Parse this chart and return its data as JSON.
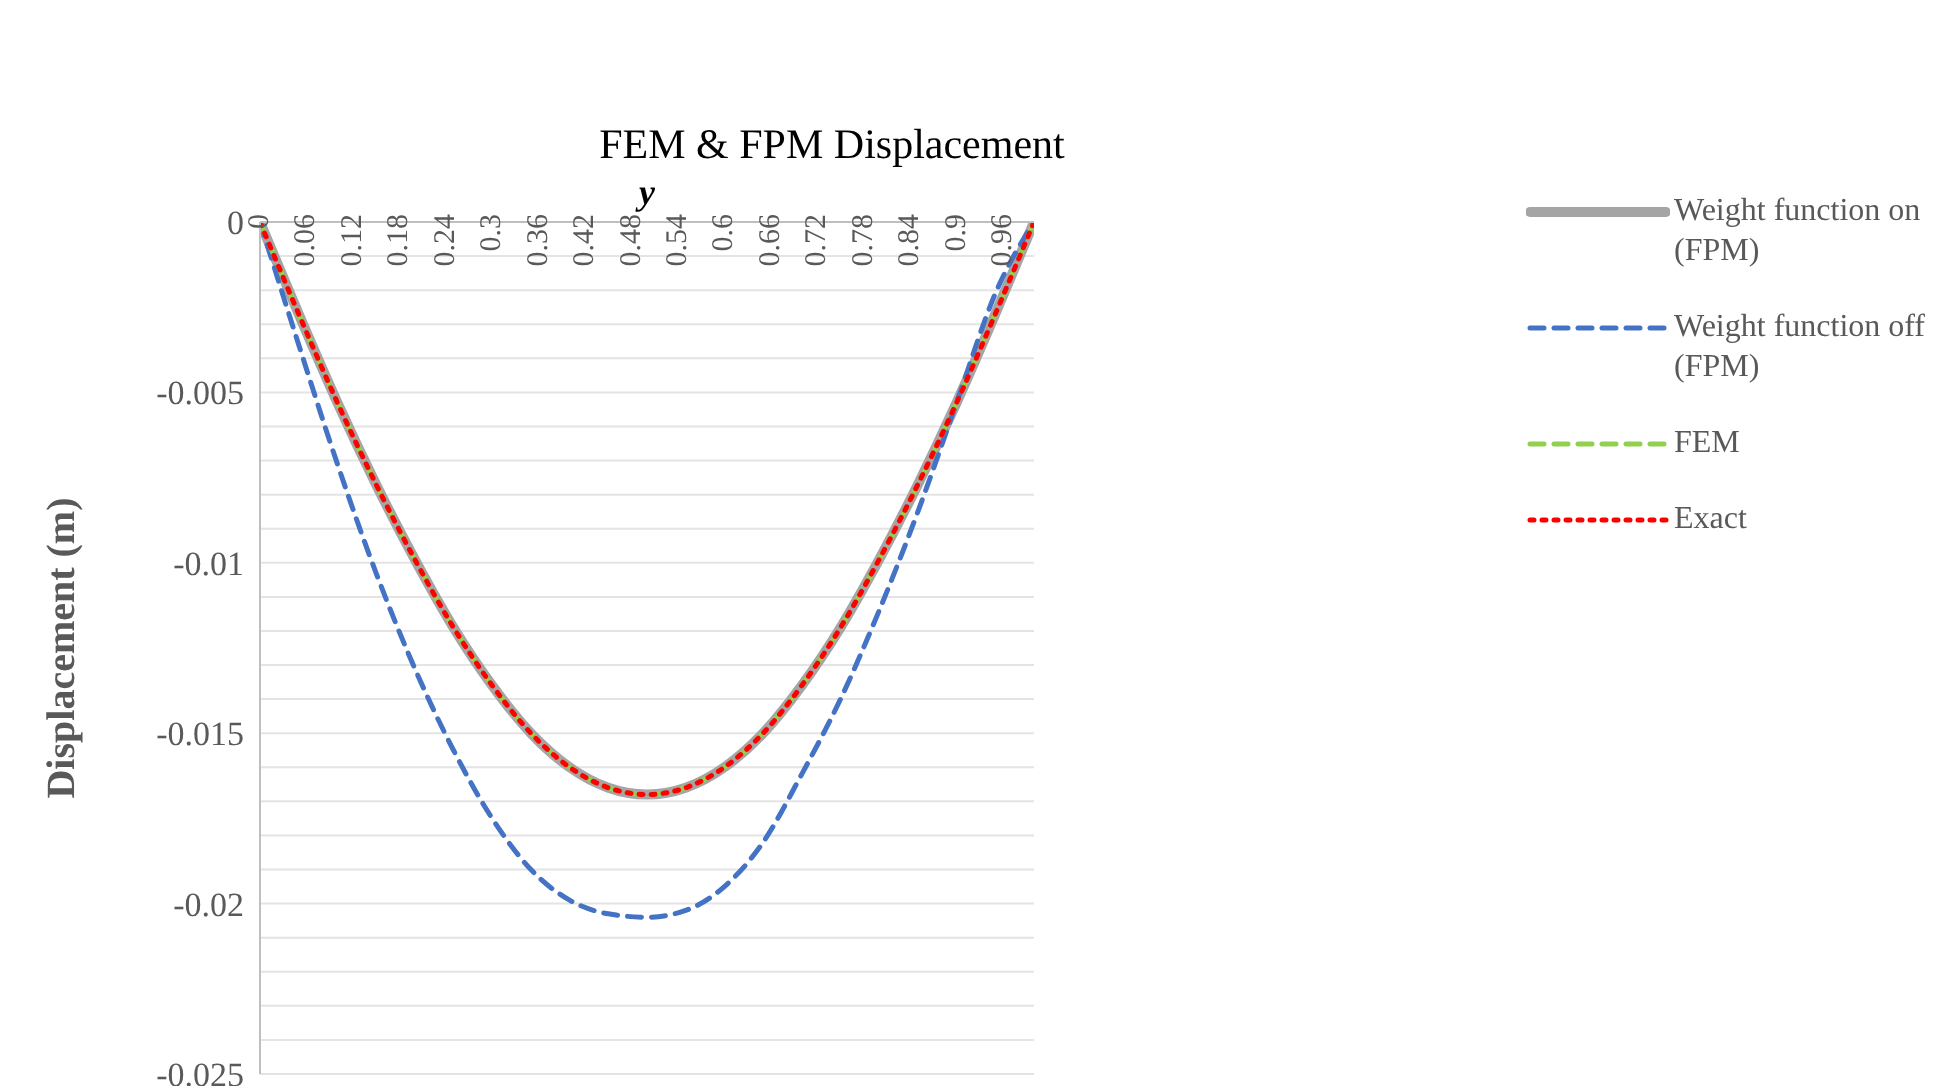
{
  "chart_data": {
    "type": "line",
    "title": "FEM & FPM Displacement",
    "xlabel": "y",
    "ylabel": "Displacement (m)",
    "x": [
      0,
      0.05,
      0.1,
      0.15,
      0.2,
      0.25,
      0.3,
      0.35,
      0.4,
      0.45,
      0.5,
      0.55,
      0.6,
      0.65,
      0.7,
      0.75,
      0.8,
      0.85,
      0.9,
      0.95,
      1
    ],
    "series": [
      {
        "name": "Weight function on (FPM)",
        "color": "#a5a5a5",
        "line_style": "solid",
        "values": [
          0,
          -0.0027,
          -0.0053,
          -0.0077,
          -0.0099,
          -0.0119,
          -0.0136,
          -0.015,
          -0.016,
          -0.0166,
          -0.0168,
          -0.0166,
          -0.016,
          -0.015,
          -0.0136,
          -0.0119,
          -0.0099,
          -0.0077,
          -0.0053,
          -0.0027,
          0
        ]
      },
      {
        "name": "Weight function off (FPM)",
        "color": "#4472c4",
        "line_style": "dashed",
        "values": [
          0,
          -0.0036,
          -0.0071,
          -0.0103,
          -0.0131,
          -0.0155,
          -0.0175,
          -0.019,
          -0.0199,
          -0.0203,
          -0.0204,
          -0.0202,
          -0.0195,
          -0.0182,
          -0.0162,
          -0.014,
          -0.0114,
          -0.0085,
          -0.0053,
          -0.0021,
          0
        ]
      },
      {
        "name": "FEM",
        "color": "#92d050",
        "line_style": "dashed",
        "values": [
          0,
          -0.0027,
          -0.0053,
          -0.0077,
          -0.0099,
          -0.0119,
          -0.0136,
          -0.015,
          -0.016,
          -0.0166,
          -0.0168,
          -0.0166,
          -0.016,
          -0.015,
          -0.0136,
          -0.0119,
          -0.0099,
          -0.0077,
          -0.0053,
          -0.0027,
          0
        ]
      },
      {
        "name": "Exact",
        "color": "#ff0000",
        "line_style": "dotted",
        "values": [
          0,
          -0.0027,
          -0.0053,
          -0.0077,
          -0.0099,
          -0.0119,
          -0.0136,
          -0.015,
          -0.016,
          -0.0166,
          -0.0168,
          -0.0166,
          -0.016,
          -0.015,
          -0.0136,
          -0.0119,
          -0.0099,
          -0.0077,
          -0.0053,
          -0.0027,
          0
        ]
      }
    ],
    "xlim": [
      0,
      1
    ],
    "xticks": [
      0,
      0.06,
      0.12,
      0.18,
      0.24,
      0.3,
      0.36,
      0.42,
      0.48,
      0.54,
      0.6,
      0.66,
      0.72,
      0.78,
      0.84,
      0.9,
      0.96
    ],
    "ylim": [
      -0.025,
      0
    ],
    "yticks": [
      -0.025,
      {
        "value": -0.024,
        "label": null
      },
      {
        "value": -0.023,
        "label": null
      },
      {
        "value": -0.022,
        "label": null
      },
      {
        "value": -0.021,
        "label": null
      },
      -0.02,
      {
        "value": -0.019,
        "label": null
      },
      {
        "value": -0.018,
        "label": null
      },
      {
        "value": -0.017,
        "label": null
      },
      {
        "value": -0.016,
        "label": null
      },
      -0.015,
      {
        "value": -0.014,
        "label": null
      },
      {
        "value": -0.013,
        "label": null
      },
      {
        "value": -0.012,
        "label": null
      },
      {
        "value": -0.011,
        "label": null
      },
      -0.01,
      {
        "value": -0.009,
        "label": null
      },
      {
        "value": -0.008,
        "label": null
      },
      {
        "value": -0.007,
        "label": null
      },
      {
        "value": -0.006,
        "label": null
      },
      -0.005,
      {
        "value": -0.004,
        "label": null
      },
      {
        "value": -0.003,
        "label": null
      },
      {
        "value": -0.002,
        "label": null
      },
      {
        "value": -0.001,
        "label": null
      },
      0
    ],
    "grid": "y",
    "legend": "right",
    "marker": "none"
  }
}
